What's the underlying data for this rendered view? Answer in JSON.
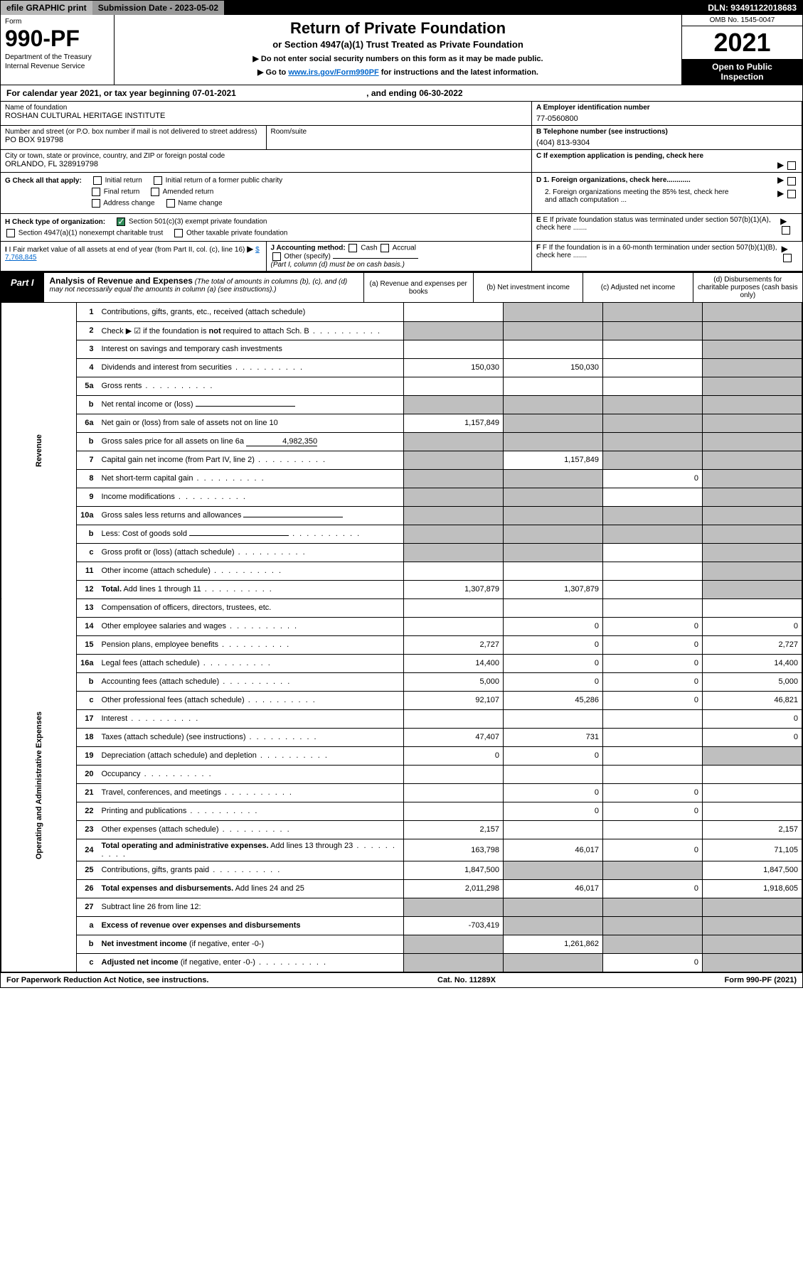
{
  "topbar": {
    "efile": "efile GRAPHIC print",
    "submission": "Submission Date - 2023-05-02",
    "dln": "DLN: 93491122018683"
  },
  "header": {
    "form_label": "Form",
    "form_no": "990-PF",
    "dept1": "Department of the Treasury",
    "dept2": "Internal Revenue Service",
    "title": "Return of Private Foundation",
    "subtitle": "or Section 4947(a)(1) Trust Treated as Private Foundation",
    "note1": "▶ Do not enter social security numbers on this form as it may be made public.",
    "note2_pre": "▶ Go to ",
    "note2_link": "www.irs.gov/Form990PF",
    "note2_post": " for instructions and the latest information.",
    "omb": "OMB No. 1545-0047",
    "year": "2021",
    "open1": "Open to Public",
    "open2": "Inspection"
  },
  "calyear": {
    "pre": "For calendar year 2021, or tax year beginning ",
    "begin": "07-01-2021",
    "mid": " , and ending ",
    "end": "06-30-2022"
  },
  "info": {
    "name_lbl": "Name of foundation",
    "name": "ROSHAN CULTURAL HERITAGE INSTITUTE",
    "ein_lbl": "A Employer identification number",
    "ein": "77-0560800",
    "street_lbl": "Number and street (or P.O. box number if mail is not delivered to street address)",
    "street": "PO BOX 919798",
    "room_lbl": "Room/suite",
    "phone_lbl": "B Telephone number (see instructions)",
    "phone": "(404) 813-9304",
    "city_lbl": "City or town, state or province, country, and ZIP or foreign postal code",
    "city": "ORLANDO, FL  328919798",
    "c_lbl": "C If exemption application is pending, check here",
    "g_lbl": "G Check all that apply:",
    "g_initial": "Initial return",
    "g_initial_former": "Initial return of a former public charity",
    "g_final": "Final return",
    "g_amended": "Amended return",
    "g_addr": "Address change",
    "g_name": "Name change",
    "d1": "D 1. Foreign organizations, check here............",
    "d2": "2. Foreign organizations meeting the 85% test, check here and attach computation ...",
    "h_lbl": "H Check type of organization:",
    "h_501c3": "Section 501(c)(3) exempt private foundation",
    "h_4947": "Section 4947(a)(1) nonexempt charitable trust",
    "h_other": "Other taxable private foundation",
    "e_lbl": "E If private foundation status was terminated under section 507(b)(1)(A), check here .......",
    "i_lbl": "I Fair market value of all assets at end of year (from Part II, col. (c), line 16)",
    "i_val": "$  7,768,845",
    "j_lbl": "J Accounting method:",
    "j_cash": "Cash",
    "j_accrual": "Accrual",
    "j_other": "Other (specify)",
    "j_note": "(Part I, column (d) must be on cash basis.)",
    "f_lbl": "F If the foundation is in a 60-month termination under section 507(b)(1)(B), check here .......",
    "arrow": "▶"
  },
  "part1": {
    "tag": "Part I",
    "title": "Analysis of Revenue and Expenses",
    "title_note": " (The total of amounts in columns (b), (c), and (d) may not necessarily equal the amounts in column (a) (see instructions).)",
    "col_a": "(a) Revenue and expenses per books",
    "col_b": "(b) Net investment income",
    "col_c": "(c) Adjusted net income",
    "col_d": "(d) Disbursements for charitable purposes (cash basis only)",
    "side_rev": "Revenue",
    "side_exp": "Operating and Administrative Expenses"
  },
  "rows": [
    {
      "n": "1",
      "lbl": "Contributions, gifts, grants, etc., received (attach schedule)",
      "a": "",
      "b": "s",
      "c": "s",
      "d": "s"
    },
    {
      "n": "2",
      "lbl": "Check ▶ ☑ if the foundation is <b>not</b> required to attach Sch. B",
      "dots": true,
      "a": "s",
      "b": "s",
      "c": "s",
      "d": "s"
    },
    {
      "n": "3",
      "lbl": "Interest on savings and temporary cash investments",
      "a": "",
      "b": "",
      "c": "",
      "d": "s"
    },
    {
      "n": "4",
      "lbl": "Dividends and interest from securities",
      "dots": true,
      "a": "150,030",
      "b": "150,030",
      "c": "",
      "d": "s"
    },
    {
      "n": "5a",
      "lbl": "Gross rents",
      "dots": true,
      "a": "",
      "b": "",
      "c": "",
      "d": "s"
    },
    {
      "n": "b",
      "lbl": "Net rental income or (loss)",
      "under": true,
      "a": "s",
      "b": "s",
      "c": "s",
      "d": "s"
    },
    {
      "n": "6a",
      "lbl": "Net gain or (loss) from sale of assets not on line 10",
      "a": "1,157,849",
      "b": "s",
      "c": "s",
      "d": "s"
    },
    {
      "n": "b",
      "lbl": "Gross sales price for all assets on line 6a",
      "under_val": "4,982,350",
      "a": "s",
      "b": "s",
      "c": "s",
      "d": "s"
    },
    {
      "n": "7",
      "lbl": "Capital gain net income (from Part IV, line 2)",
      "dots": true,
      "a": "s",
      "b": "1,157,849",
      "c": "s",
      "d": "s"
    },
    {
      "n": "8",
      "lbl": "Net short-term capital gain",
      "dots": true,
      "a": "s",
      "b": "s",
      "c": "0",
      "d": "s"
    },
    {
      "n": "9",
      "lbl": "Income modifications",
      "dots": true,
      "a": "s",
      "b": "s",
      "c": "",
      "d": "s"
    },
    {
      "n": "10a",
      "lbl": "Gross sales less returns and allowances",
      "under": true,
      "a": "s",
      "b": "s",
      "c": "s",
      "d": "s"
    },
    {
      "n": "b",
      "lbl": "Less: Cost of goods sold",
      "dots": true,
      "under": true,
      "a": "s",
      "b": "s",
      "c": "s",
      "d": "s"
    },
    {
      "n": "c",
      "lbl": "Gross profit or (loss) (attach schedule)",
      "dots": true,
      "a": "s",
      "b": "s",
      "c": "",
      "d": "s"
    },
    {
      "n": "11",
      "lbl": "Other income (attach schedule)",
      "dots": true,
      "a": "",
      "b": "",
      "c": "",
      "d": "s"
    },
    {
      "n": "12",
      "lbl": "<b>Total.</b> Add lines 1 through 11",
      "dots": true,
      "a": "1,307,879",
      "b": "1,307,879",
      "c": "",
      "d": "s"
    }
  ],
  "exp_rows": [
    {
      "n": "13",
      "lbl": "Compensation of officers, directors, trustees, etc.",
      "a": "",
      "b": "",
      "c": "",
      "d": ""
    },
    {
      "n": "14",
      "lbl": "Other employee salaries and wages",
      "dots": true,
      "a": "",
      "b": "0",
      "c": "0",
      "d": "0"
    },
    {
      "n": "15",
      "lbl": "Pension plans, employee benefits",
      "dots": true,
      "a": "2,727",
      "b": "0",
      "c": "0",
      "d": "2,727"
    },
    {
      "n": "16a",
      "lbl": "Legal fees (attach schedule)",
      "dots": true,
      "a": "14,400",
      "b": "0",
      "c": "0",
      "d": "14,400"
    },
    {
      "n": "b",
      "lbl": "Accounting fees (attach schedule)",
      "dots": true,
      "a": "5,000",
      "b": "0",
      "c": "0",
      "d": "5,000"
    },
    {
      "n": "c",
      "lbl": "Other professional fees (attach schedule)",
      "dots": true,
      "a": "92,107",
      "b": "45,286",
      "c": "0",
      "d": "46,821"
    },
    {
      "n": "17",
      "lbl": "Interest",
      "dots": true,
      "a": "",
      "b": "",
      "c": "",
      "d": "0"
    },
    {
      "n": "18",
      "lbl": "Taxes (attach schedule) (see instructions)",
      "dots": true,
      "a": "47,407",
      "b": "731",
      "c": "",
      "d": "0"
    },
    {
      "n": "19",
      "lbl": "Depreciation (attach schedule) and depletion",
      "dots": true,
      "a": "0",
      "b": "0",
      "c": "",
      "d": "s"
    },
    {
      "n": "20",
      "lbl": "Occupancy",
      "dots": true,
      "a": "",
      "b": "",
      "c": "",
      "d": ""
    },
    {
      "n": "21",
      "lbl": "Travel, conferences, and meetings",
      "dots": true,
      "a": "",
      "b": "0",
      "c": "0",
      "d": ""
    },
    {
      "n": "22",
      "lbl": "Printing and publications",
      "dots": true,
      "a": "",
      "b": "0",
      "c": "0",
      "d": ""
    },
    {
      "n": "23",
      "lbl": "Other expenses (attach schedule)",
      "dots": true,
      "a": "2,157",
      "b": "",
      "c": "",
      "d": "2,157"
    },
    {
      "n": "24",
      "lbl": "<b>Total operating and administrative expenses.</b> Add lines 13 through 23",
      "dots": true,
      "a": "163,798",
      "b": "46,017",
      "c": "0",
      "d": "71,105"
    },
    {
      "n": "25",
      "lbl": "Contributions, gifts, grants paid",
      "dots": true,
      "a": "1,847,500",
      "b": "s",
      "c": "s",
      "d": "1,847,500"
    },
    {
      "n": "26",
      "lbl": "<b>Total expenses and disbursements.</b> Add lines 24 and 25",
      "a": "2,011,298",
      "b": "46,017",
      "c": "0",
      "d": "1,918,605"
    },
    {
      "n": "27",
      "lbl": "Subtract line 26 from line 12:",
      "a": "s",
      "b": "s",
      "c": "s",
      "d": "s"
    },
    {
      "n": "a",
      "lbl": "<b>Excess of revenue over expenses and disbursements</b>",
      "a": "-703,419",
      "b": "s",
      "c": "s",
      "d": "s"
    },
    {
      "n": "b",
      "lbl": "<b>Net investment income</b> (if negative, enter -0-)",
      "a": "s",
      "b": "1,261,862",
      "c": "s",
      "d": "s"
    },
    {
      "n": "c",
      "lbl": "<b>Adjusted net income</b> (if negative, enter -0-)",
      "dots": true,
      "a": "s",
      "b": "s",
      "c": "0",
      "d": "s"
    }
  ],
  "footer": {
    "left": "For Paperwork Reduction Act Notice, see instructions.",
    "mid": "Cat. No. 11289X",
    "right": "Form 990-PF (2021)"
  }
}
